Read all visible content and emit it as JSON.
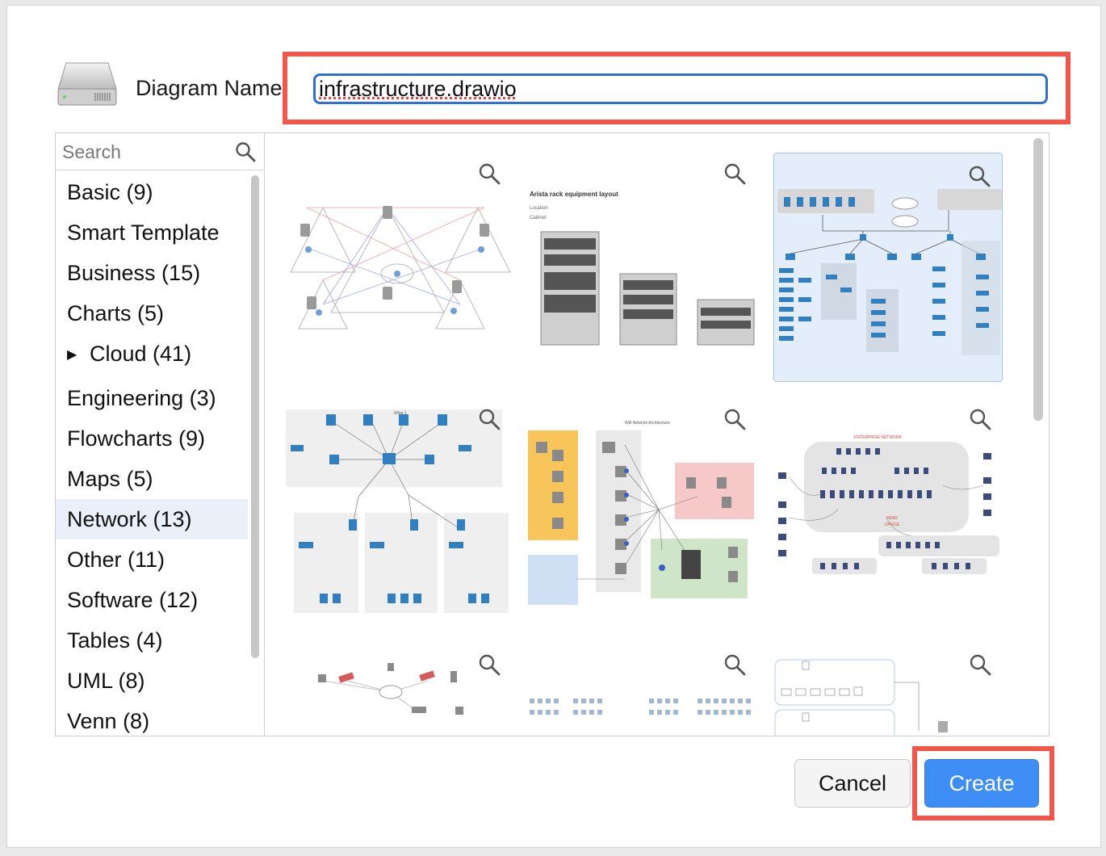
{
  "header": {
    "name_label": "Diagram Name:",
    "diagram_name": "infrastructure.drawio",
    "drive_icon": "hard-drive-icon"
  },
  "sidebar": {
    "search_placeholder": "Search",
    "selected": "Network (13)",
    "categories": [
      {
        "label": "Basic (9)"
      },
      {
        "label": "Smart Template"
      },
      {
        "label": "Business (15)"
      },
      {
        "label": "Charts (5)"
      },
      {
        "label": "Cloud (41)",
        "expandable": true
      },
      {
        "label": "Engineering (3)"
      },
      {
        "label": "Flowcharts (9)"
      },
      {
        "label": "Maps (5)"
      },
      {
        "label": "Network (13)"
      },
      {
        "label": "Other (11)"
      },
      {
        "label": "Software (12)"
      },
      {
        "label": "Tables (4)"
      },
      {
        "label": "UML (8)"
      },
      {
        "label": "Venn (8)"
      }
    ]
  },
  "gallery": {
    "selected_index": 2,
    "templates": [
      {
        "title": ""
      },
      {
        "title": "Arista rack equipment layout",
        "sub1": "Location",
        "sub2": "Cabinet"
      },
      {
        "title": ""
      },
      {
        "title": "Wing 1"
      },
      {
        "title": "Wifi Network Architecture"
      },
      {
        "title": "ENTERPRISE NETWORK",
        "sub1": "HEAD",
        "sub2": "OFFICE"
      },
      {
        "title": ""
      },
      {
        "title": ""
      },
      {
        "title": ""
      }
    ]
  },
  "footer": {
    "cancel_label": "Cancel",
    "create_label": "Create"
  },
  "colors": {
    "highlight": "#f2554a",
    "accent": "#3e8ef5",
    "selection": "#e9f0fa",
    "cisco_blue": "#2f7fc1"
  }
}
